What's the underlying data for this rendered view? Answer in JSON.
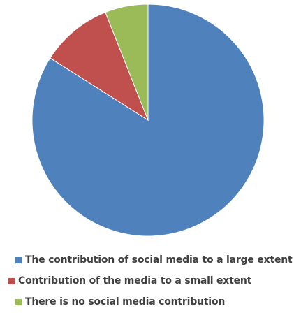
{
  "chart_data": {
    "type": "pie",
    "title": "",
    "start_angle_deg": 0,
    "direction": "clockwise",
    "series": [
      {
        "name": "The contribution of social media to a large extent",
        "value": 84,
        "color": "#4F81BD"
      },
      {
        "name": "Contribution of the media to a small extent",
        "value": 10,
        "color": "#C0504D"
      },
      {
        "name": "There is no social media contribution",
        "value": 6,
        "color": "#9BBB59"
      }
    ],
    "legend_position": "bottom-left"
  }
}
